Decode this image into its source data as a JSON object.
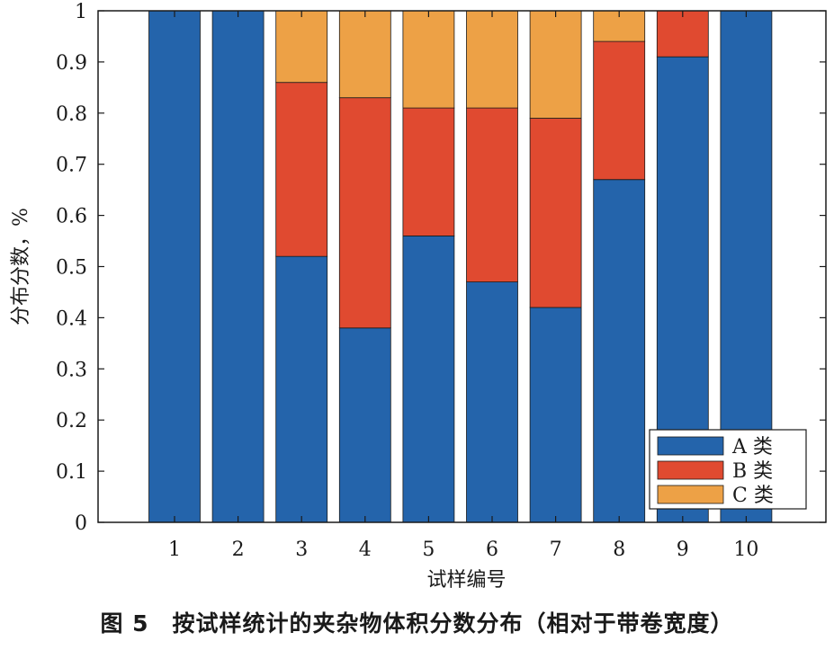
{
  "caption": "图 5　按试样统计的夹杂物体积分数分布（相对于带卷宽度）",
  "chart_data": {
    "type": "bar",
    "stacked": true,
    "title": "",
    "xlabel": "试样编号",
    "ylabel": "分布分数，%",
    "ylim": [
      0,
      1
    ],
    "yticks": [
      "0",
      "0.1",
      "0.2",
      "0.3",
      "0.4",
      "0.5",
      "0.6",
      "0.7",
      "0.8",
      "0.9",
      "1"
    ],
    "categories": [
      "1",
      "2",
      "3",
      "4",
      "5",
      "6",
      "7",
      "8",
      "9",
      "10"
    ],
    "series": [
      {
        "name": "A 类",
        "color": "#2464ab",
        "values": [
          1.0,
          1.0,
          0.52,
          0.38,
          0.56,
          0.47,
          0.42,
          0.67,
          0.91,
          1.0
        ]
      },
      {
        "name": "B 类",
        "color": "#e04a30",
        "values": [
          0,
          0,
          0.34,
          0.45,
          0.25,
          0.34,
          0.37,
          0.27,
          0.09,
          0
        ]
      },
      {
        "name": "C 类",
        "color": "#eda146",
        "values": [
          0,
          0,
          0.14,
          0.17,
          0.19,
          0.19,
          0.21,
          0.06,
          0,
          0
        ]
      }
    ],
    "grid": false,
    "legend_position": "bottom-right"
  }
}
